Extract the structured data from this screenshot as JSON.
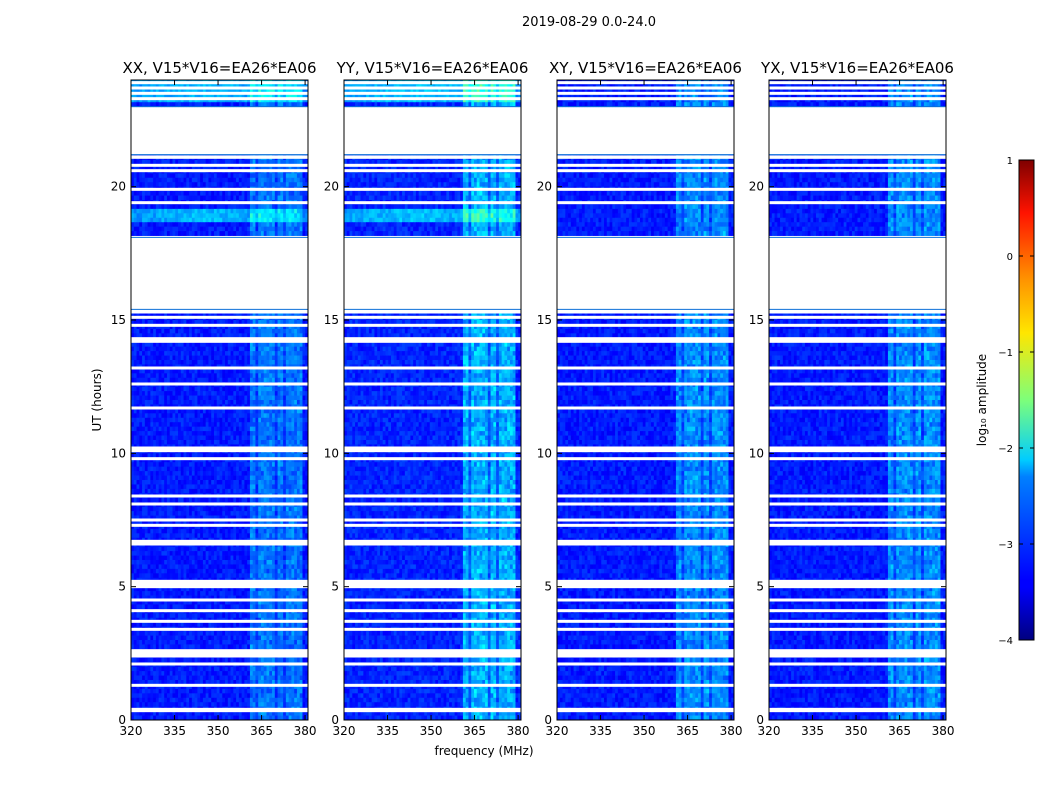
{
  "figure_title": "2019-08-29 0.0-24.0",
  "chart_data": {
    "type": "heatmap",
    "title": "2019-08-29 0.0-24.0",
    "xlabel": "frequency (MHz)",
    "ylabel": "UT (hours)",
    "xlim": [
      320,
      381
    ],
    "ylim": [
      0,
      24
    ],
    "xticks": [
      "320",
      "335",
      "350",
      "365",
      "380"
    ],
    "xtick_values": [
      320,
      335,
      350,
      365,
      380
    ],
    "yticks": [
      "0",
      "5",
      "10",
      "15",
      "20"
    ],
    "ytick_values": [
      0,
      5,
      10,
      15,
      20
    ],
    "panels": [
      {
        "title": "XX, V15*V16=EA26*EA06",
        "pol": "XX",
        "base_log": -3.25,
        "band_gain": 0.55
      },
      {
        "title": "YY, V15*V16=EA26*EA06",
        "pol": "YY",
        "base_log": -3.2,
        "band_gain": 0.85
      },
      {
        "title": "XY, V15*V16=EA26*EA06",
        "pol": "XY",
        "base_log": -3.25,
        "band_gain": 0.7
      },
      {
        "title": "YX, V15*V16=EA26*EA06",
        "pol": "YX",
        "base_log": -3.25,
        "band_gain": 0.7
      }
    ],
    "flagged_ut_ranges": [
      [
        15.4,
        18.1
      ],
      [
        21.2,
        23.0
      ]
    ],
    "bright_ut_ranges_xx_yy": [
      [
        18.6,
        19.2
      ],
      [
        23.2,
        24.0
      ]
    ],
    "rfi_band_mhz": [
      361,
      379
    ],
    "colorbar": {
      "label": "log₁₀ amplitude",
      "vmin": -4,
      "vmax": 1,
      "ticks": [
        "1",
        "0",
        "−1",
        "−2",
        "−3",
        "−4"
      ],
      "tick_values": [
        1,
        0,
        -1,
        -2,
        -3,
        -4
      ],
      "colormap": "jet"
    }
  }
}
